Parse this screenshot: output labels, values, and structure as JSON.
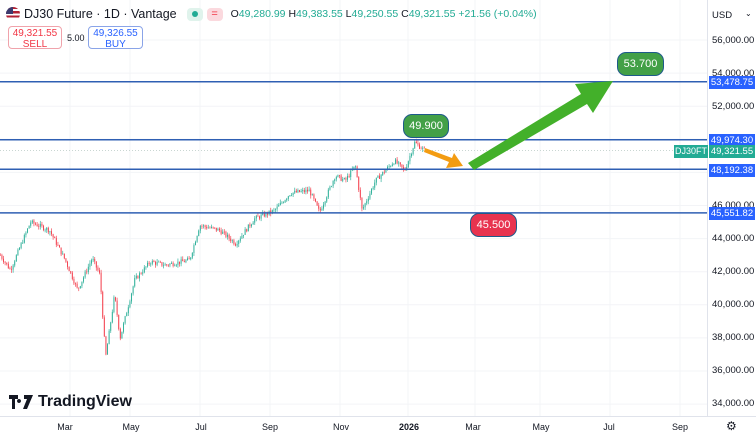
{
  "header": {
    "title": "DJ30 Future · 1D · Vantage",
    "open_label": "O",
    "open": "49,280.99",
    "high_label": "H",
    "high": "49,383.55",
    "low_label": "L",
    "low": "49,250.55",
    "close_label": "C",
    "close": "49,321.55",
    "change": "+21.56 (+0.04%)",
    "status_icon": "market-open-dot",
    "menu_icon": "equals-icon"
  },
  "trade": {
    "sell_price": "49,321.55",
    "sell_label": "SELL",
    "spread": "5.00",
    "buy_price": "49,326.55",
    "buy_label": "BUY"
  },
  "axis": {
    "currency": "USD",
    "y_ticks": [
      "56,000.00",
      "54,000.00",
      "52,000.00",
      "46,000.00",
      "44,000.00",
      "42,000.00",
      "40,000.00",
      "38,000.00",
      "36,000.00",
      "34,000.00"
    ],
    "x_ticks": [
      "Mar",
      "May",
      "Jul",
      "Sep",
      "Nov",
      "2026",
      "Mar",
      "May",
      "Jul",
      "Sep"
    ]
  },
  "price_tags": {
    "line1": "53,478.75",
    "line2": "49,974.30",
    "current": "49,321.55",
    "symbol": "DJ30FT",
    "line3": "48,192.38",
    "line4": "45,551.82"
  },
  "annotations": {
    "target_high": "53.700",
    "target_mid": "49.900",
    "target_low": "45.500"
  },
  "brand": {
    "name": "TradingView"
  },
  "colors": {
    "up": "#22ab94",
    "down": "#f23645",
    "level_line": "#2f5fb3",
    "tag": "#2962ff",
    "green_arrow": "#43b02a",
    "orange_arrow": "#f39c12",
    "green_pill": "#43a047",
    "red_pill": "#e8334f"
  },
  "chart_data": {
    "type": "candlestick",
    "ylim": [
      34000,
      56000
    ],
    "horizontal_levels": [
      53478.75,
      49974.3,
      48192.38,
      45551.82
    ],
    "current_price": 49321.55,
    "approx_close_path": [
      [
        "2025-01-02",
        43000
      ],
      [
        "2025-01-11",
        42100
      ],
      [
        "2025-01-29",
        45000
      ],
      [
        "2025-02-15",
        44500
      ],
      [
        "2025-03-01",
        42700
      ],
      [
        "2025-03-12",
        40900
      ],
      [
        "2025-03-25",
        42800
      ],
      [
        "2025-04-01",
        41800
      ],
      [
        "2025-04-06",
        36800
      ],
      [
        "2025-04-14",
        40600
      ],
      [
        "2025-04-19",
        38000
      ],
      [
        "2025-05-02",
        41500
      ],
      [
        "2025-05-16",
        42600
      ],
      [
        "2025-05-29",
        42400
      ],
      [
        "2025-06-20",
        42700
      ],
      [
        "2025-06-29",
        44800
      ],
      [
        "2025-07-17",
        44500
      ],
      [
        "2025-07-31",
        43700
      ],
      [
        "2025-08-17",
        45200
      ],
      [
        "2025-09-04",
        45700
      ],
      [
        "2025-09-18",
        46750
      ],
      [
        "2025-10-05",
        46900
      ],
      [
        "2025-10-14",
        45600
      ],
      [
        "2025-10-28",
        47800
      ],
      [
        "2025-11-06",
        47500
      ],
      [
        "2025-11-15",
        48400
      ],
      [
        "2025-11-21",
        45700
      ],
      [
        "2025-12-03",
        47500
      ],
      [
        "2025-12-20",
        48700
      ],
      [
        "2025-12-29",
        48100
      ],
      [
        "2026-01-07",
        49800
      ],
      [
        "2026-01-16",
        49321.55
      ]
    ]
  }
}
